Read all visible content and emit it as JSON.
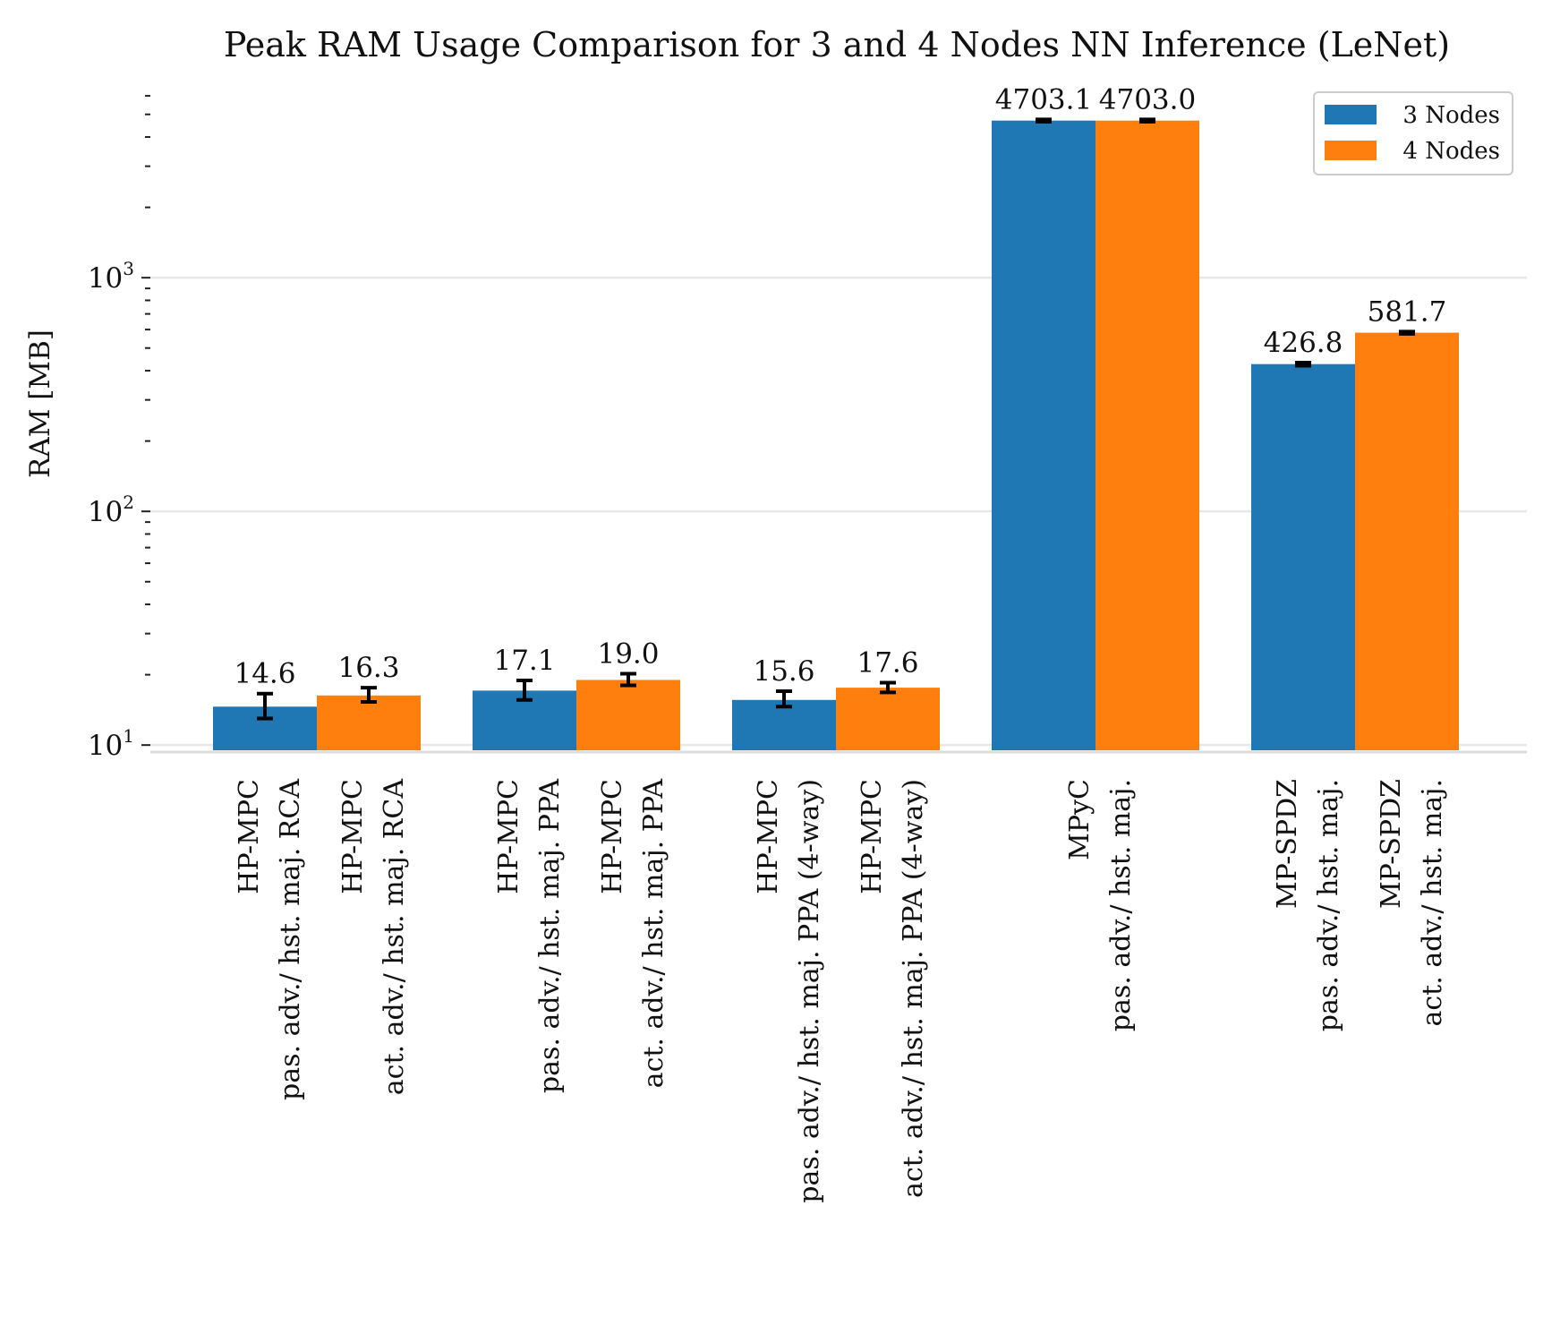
{
  "chart_data": {
    "type": "bar",
    "title": "Peak RAM Usage Comparison for 3 and 4 Nodes NN Inference (LeNet)",
    "ylabel": "RAM [MB]",
    "xlabel": "",
    "yscale": "log",
    "ylim": [
      9.5,
      6500
    ],
    "yticks": [
      {
        "value": 10,
        "base": "10",
        "exp": "1"
      },
      {
        "value": 100,
        "base": "10",
        "exp": "2"
      },
      {
        "value": 1000,
        "base": "10",
        "exp": "3"
      }
    ],
    "grid": "horizontal",
    "legend_position": "top-right",
    "series": [
      {
        "name": "3 Nodes",
        "color": "#1f77b4"
      },
      {
        "name": "4 Nodes",
        "color": "#ff7f0e"
      }
    ],
    "groups": [
      {
        "bars": [
          {
            "series": 0,
            "value": 14.6,
            "label": "14.6",
            "err": [
              13.0,
              16.6
            ],
            "tick": [
              "HP-MPC",
              "pas. adv./ hst. maj. RCA"
            ]
          },
          {
            "series": 1,
            "value": 16.3,
            "label": "16.3",
            "err": [
              15.3,
              17.6
            ],
            "tick": [
              "HP-MPC",
              "act. adv./ hst. maj. RCA"
            ]
          }
        ]
      },
      {
        "bars": [
          {
            "series": 0,
            "value": 17.1,
            "label": "17.1",
            "err": [
              15.6,
              18.9
            ],
            "tick": [
              "HP-MPC",
              "pas. adv./ hst. maj. PPA"
            ]
          },
          {
            "series": 1,
            "value": 19.0,
            "label": "19.0",
            "err": [
              18.0,
              20.2
            ],
            "tick": [
              "HP-MPC",
              "act. adv./ hst. maj. PPA"
            ]
          }
        ]
      },
      {
        "bars": [
          {
            "series": 0,
            "value": 15.6,
            "label": "15.6",
            "err": [
              14.6,
              17.0
            ],
            "tick": [
              "HP-MPC",
              "pas. adv./ hst. maj. PPA (4-way)"
            ]
          },
          {
            "series": 1,
            "value": 17.6,
            "label": "17.6",
            "err": [
              16.8,
              18.5
            ],
            "tick": [
              "HP-MPC",
              "act. adv./ hst. maj. PPA (4-way)"
            ]
          }
        ]
      },
      {
        "bars": [
          {
            "series": 0,
            "value": 4703.1,
            "label": "4703.1",
            "err": [
              4650,
              4760
            ],
            "tick": null
          },
          {
            "series": 1,
            "value": 4703.0,
            "label": "4703.0",
            "err": [
              4650,
              4760
            ],
            "tick": null
          }
        ],
        "group_tick": [
          "MPyC",
          "pas. adv./ hst. maj."
        ]
      },
      {
        "bars": [
          {
            "series": 0,
            "value": 426.8,
            "label": "426.8",
            "err": [
              420,
              433
            ],
            "tick": [
              "MP-SPDZ",
              "pas. adv./ hst. maj."
            ]
          },
          {
            "series": 1,
            "value": 581.7,
            "label": "581.7",
            "err": [
              575,
              588
            ],
            "tick": [
              "MP-SPDZ",
              "act. adv./ hst. maj."
            ]
          }
        ]
      }
    ]
  }
}
